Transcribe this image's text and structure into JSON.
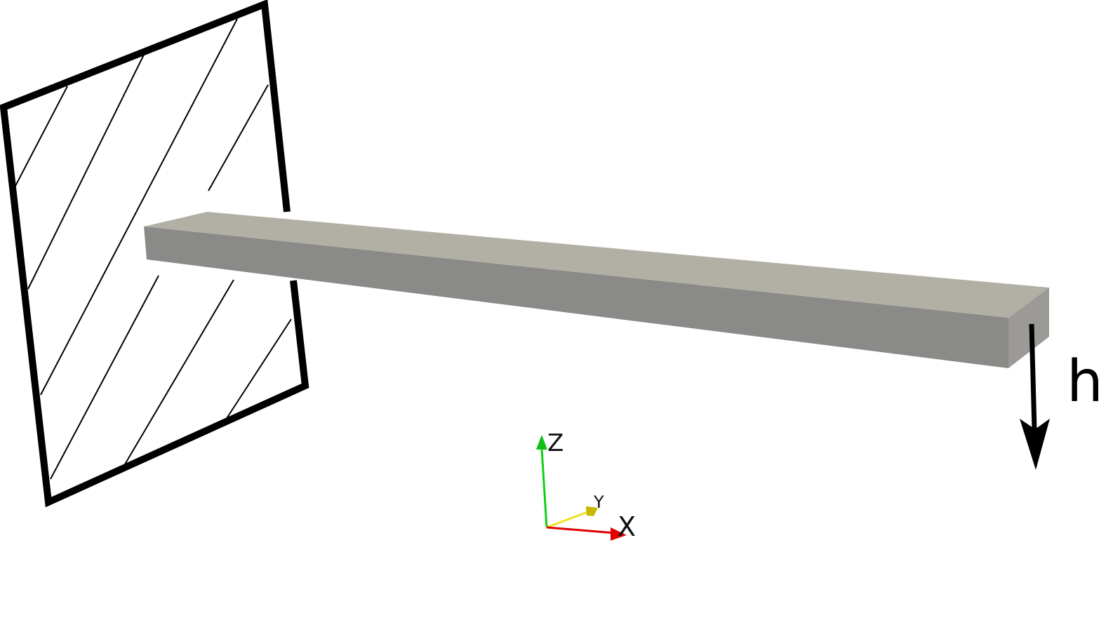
{
  "labels": {
    "load": "h",
    "axis_z": "Z",
    "axis_y": "Y",
    "axis_x": "X"
  },
  "colors": {
    "wall_stroke": "#000000",
    "beam_top": "#b2afa4",
    "beam_side": "#8a8a88",
    "beam_end": "#9e9c96",
    "arrow": "#000000",
    "axis_x": "#e00000",
    "axis_y": "#f0e020",
    "axis_z": "#10d010"
  },
  "icons": {
    "wall": "fixed-support-hatched-wall",
    "load_arrow": "down-arrow",
    "axes": "xyz-orientation-triad"
  }
}
